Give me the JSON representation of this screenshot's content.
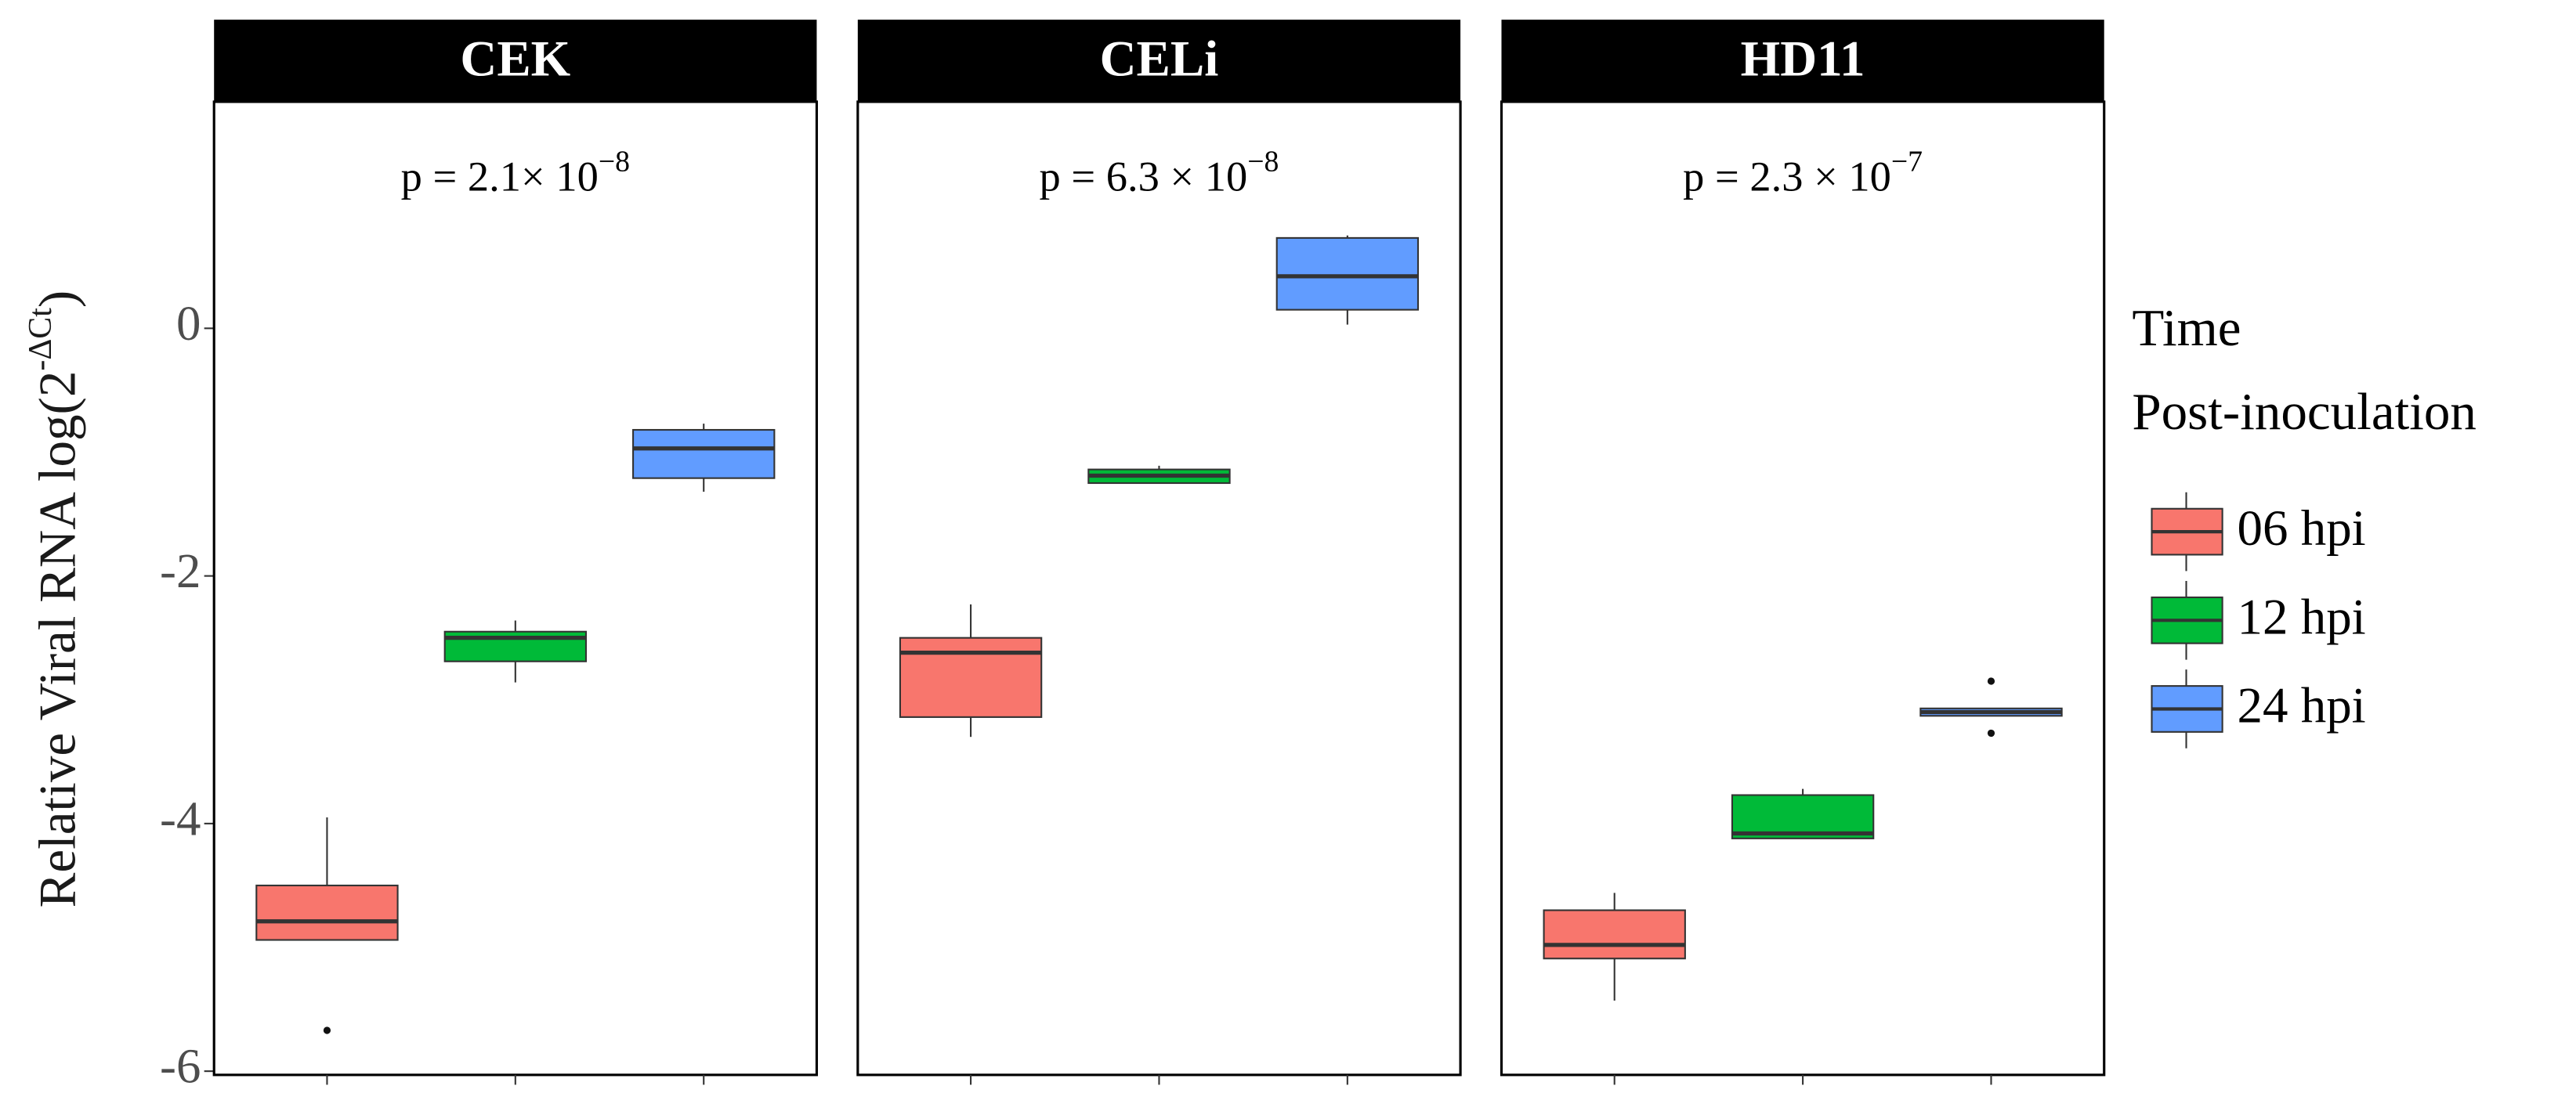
{
  "chart_data": {
    "type": "box",
    "y_label": "Relative Viral RNA log(2",
    "y_label_superscript": "-ΔCt",
    "y_label_suffix": ")",
    "ylim": [
      -6.03,
      1.83
    ],
    "yticks": [
      -6,
      -4,
      -2,
      0
    ],
    "legend_title": [
      "Time",
      "Post-inoculation"
    ],
    "legend_position": "right",
    "series": [
      {
        "name": "06 hpi",
        "color": "#F8766D"
      },
      {
        "name": "12 hpi",
        "color": "#00BA38"
      },
      {
        "name": "24 hpi",
        "color": "#619CFF"
      }
    ],
    "facets": [
      {
        "title": "CEK",
        "p_value": {
          "text": "p = 2.1× 10",
          "exponent": "−8"
        },
        "boxes": [
          {
            "whisker_low": -4.94,
            "q1": -4.94,
            "median": -4.79,
            "q3": -4.5,
            "whisker_high": -3.95,
            "outliers": [
              -5.67
            ]
          },
          {
            "whisker_low": -2.86,
            "q1": -2.69,
            "median": -2.5,
            "q3": -2.45,
            "whisker_high": -2.36,
            "outliers": []
          },
          {
            "whisker_low": -1.32,
            "q1": -1.21,
            "median": -0.97,
            "q3": -0.82,
            "whisker_high": -0.77,
            "outliers": []
          }
        ]
      },
      {
        "title": "CELi",
        "p_value": {
          "text": "p = 6.3 × 10",
          "exponent": "−8"
        },
        "boxes": [
          {
            "whisker_low": -3.3,
            "q1": -3.14,
            "median": -2.62,
            "q3": -2.5,
            "whisker_high": -2.23,
            "outliers": []
          },
          {
            "whisker_low": -1.25,
            "q1": -1.25,
            "median": -1.19,
            "q3": -1.14,
            "whisker_high": -1.11,
            "outliers": []
          },
          {
            "whisker_low": 0.03,
            "q1": 0.15,
            "median": 0.42,
            "q3": 0.73,
            "whisker_high": 0.75,
            "outliers": []
          }
        ]
      },
      {
        "title": "HD11",
        "p_value": {
          "text": "p = 2.3 × 10",
          "exponent": "−7"
        },
        "boxes": [
          {
            "whisker_low": -5.43,
            "q1": -5.09,
            "median": -4.98,
            "q3": -4.7,
            "whisker_high": -4.56,
            "outliers": []
          },
          {
            "whisker_low": -4.12,
            "q1": -4.12,
            "median": -4.08,
            "q3": -3.77,
            "whisker_high": -3.72,
            "outliers": []
          },
          {
            "whisker_low": -3.13,
            "q1": -3.13,
            "median": -3.1,
            "q3": -3.07,
            "whisker_high": -3.07,
            "outliers": [
              -2.85,
              -3.27
            ]
          }
        ]
      }
    ]
  }
}
